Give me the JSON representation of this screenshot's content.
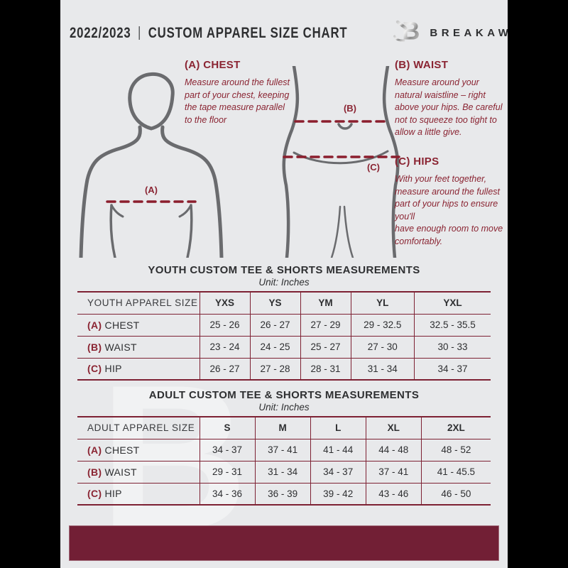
{
  "header": {
    "season": "2022/2023",
    "divider": "|",
    "title": "CUSTOM APPAREL SIZE CHART",
    "brand": "BREAKAWAY"
  },
  "watermark": "B",
  "figure_labels": {
    "chest": "(A)",
    "waist": "(B)",
    "hips": "(C)"
  },
  "instructions": [
    {
      "title": "(A) CHEST",
      "text": "Measure around the fullest part of your chest, keeping the tape measure parallel to the floor"
    },
    {
      "title": "(B) WAIST",
      "text": "Measure around your natural waistline – right above your hips. Be careful not to squeeze too tight to allow a little give."
    },
    {
      "title": "(C) HIPS",
      "text": "With your feet together, measure around the fullest part of your hips to ensure you'll\nhave enough room to move comfortably."
    }
  ],
  "tables": [
    {
      "title": "YOUTH CUSTOM TEE & SHORTS MEASUREMENTS",
      "unit": "Unit: Inches",
      "size_label": "YOUTH APPAREL SIZE",
      "sizes": [
        "YXS",
        "YS",
        "YM",
        "YL",
        "YXL"
      ],
      "rows": [
        {
          "prefix": "(A)",
          "label": "CHEST",
          "values": [
            "25 - 26",
            "26 - 27",
            "27 - 29",
            "29 - 32.5",
            "32.5 - 35.5"
          ]
        },
        {
          "prefix": "(B)",
          "label": "WAIST",
          "values": [
            "23 - 24",
            "24 - 25",
            "25 - 27",
            "27 - 30",
            "30 - 33"
          ]
        },
        {
          "prefix": "(C)",
          "label": "HIP",
          "values": [
            "26 - 27",
            "27 - 28",
            "28 - 31",
            "31 - 34",
            "34 - 37"
          ]
        }
      ]
    },
    {
      "title": "ADULT CUSTOM TEE & SHORTS MEASUREMENTS",
      "unit": "Unit: Inches",
      "size_label": "ADULT APPAREL SIZE",
      "sizes": [
        "S",
        "M",
        "L",
        "XL",
        "2XL"
      ],
      "rows": [
        {
          "prefix": "(A)",
          "label": "CHEST",
          "values": [
            "34 - 37",
            "37 - 41",
            "41 - 44",
            "44 - 48",
            "48 - 52"
          ]
        },
        {
          "prefix": "(B)",
          "label": "WAIST",
          "values": [
            "29 - 31",
            "31 - 34",
            "34 - 37",
            "37 - 41",
            "41 - 45.5"
          ]
        },
        {
          "prefix": "(C)",
          "label": "HIP",
          "values": [
            "34 - 36",
            "36 - 39",
            "39 - 42",
            "43 - 46",
            "46 - 50"
          ]
        }
      ]
    }
  ],
  "colors": {
    "maroon_text": "#8A2432",
    "dashed_line": "#8B1E2D",
    "table_border": "#7D2133",
    "footer_bar": "#721F35",
    "page_bg": "#E8E9EB",
    "ink": "#2E2F31",
    "figure_stroke": "#6A6B6E"
  }
}
